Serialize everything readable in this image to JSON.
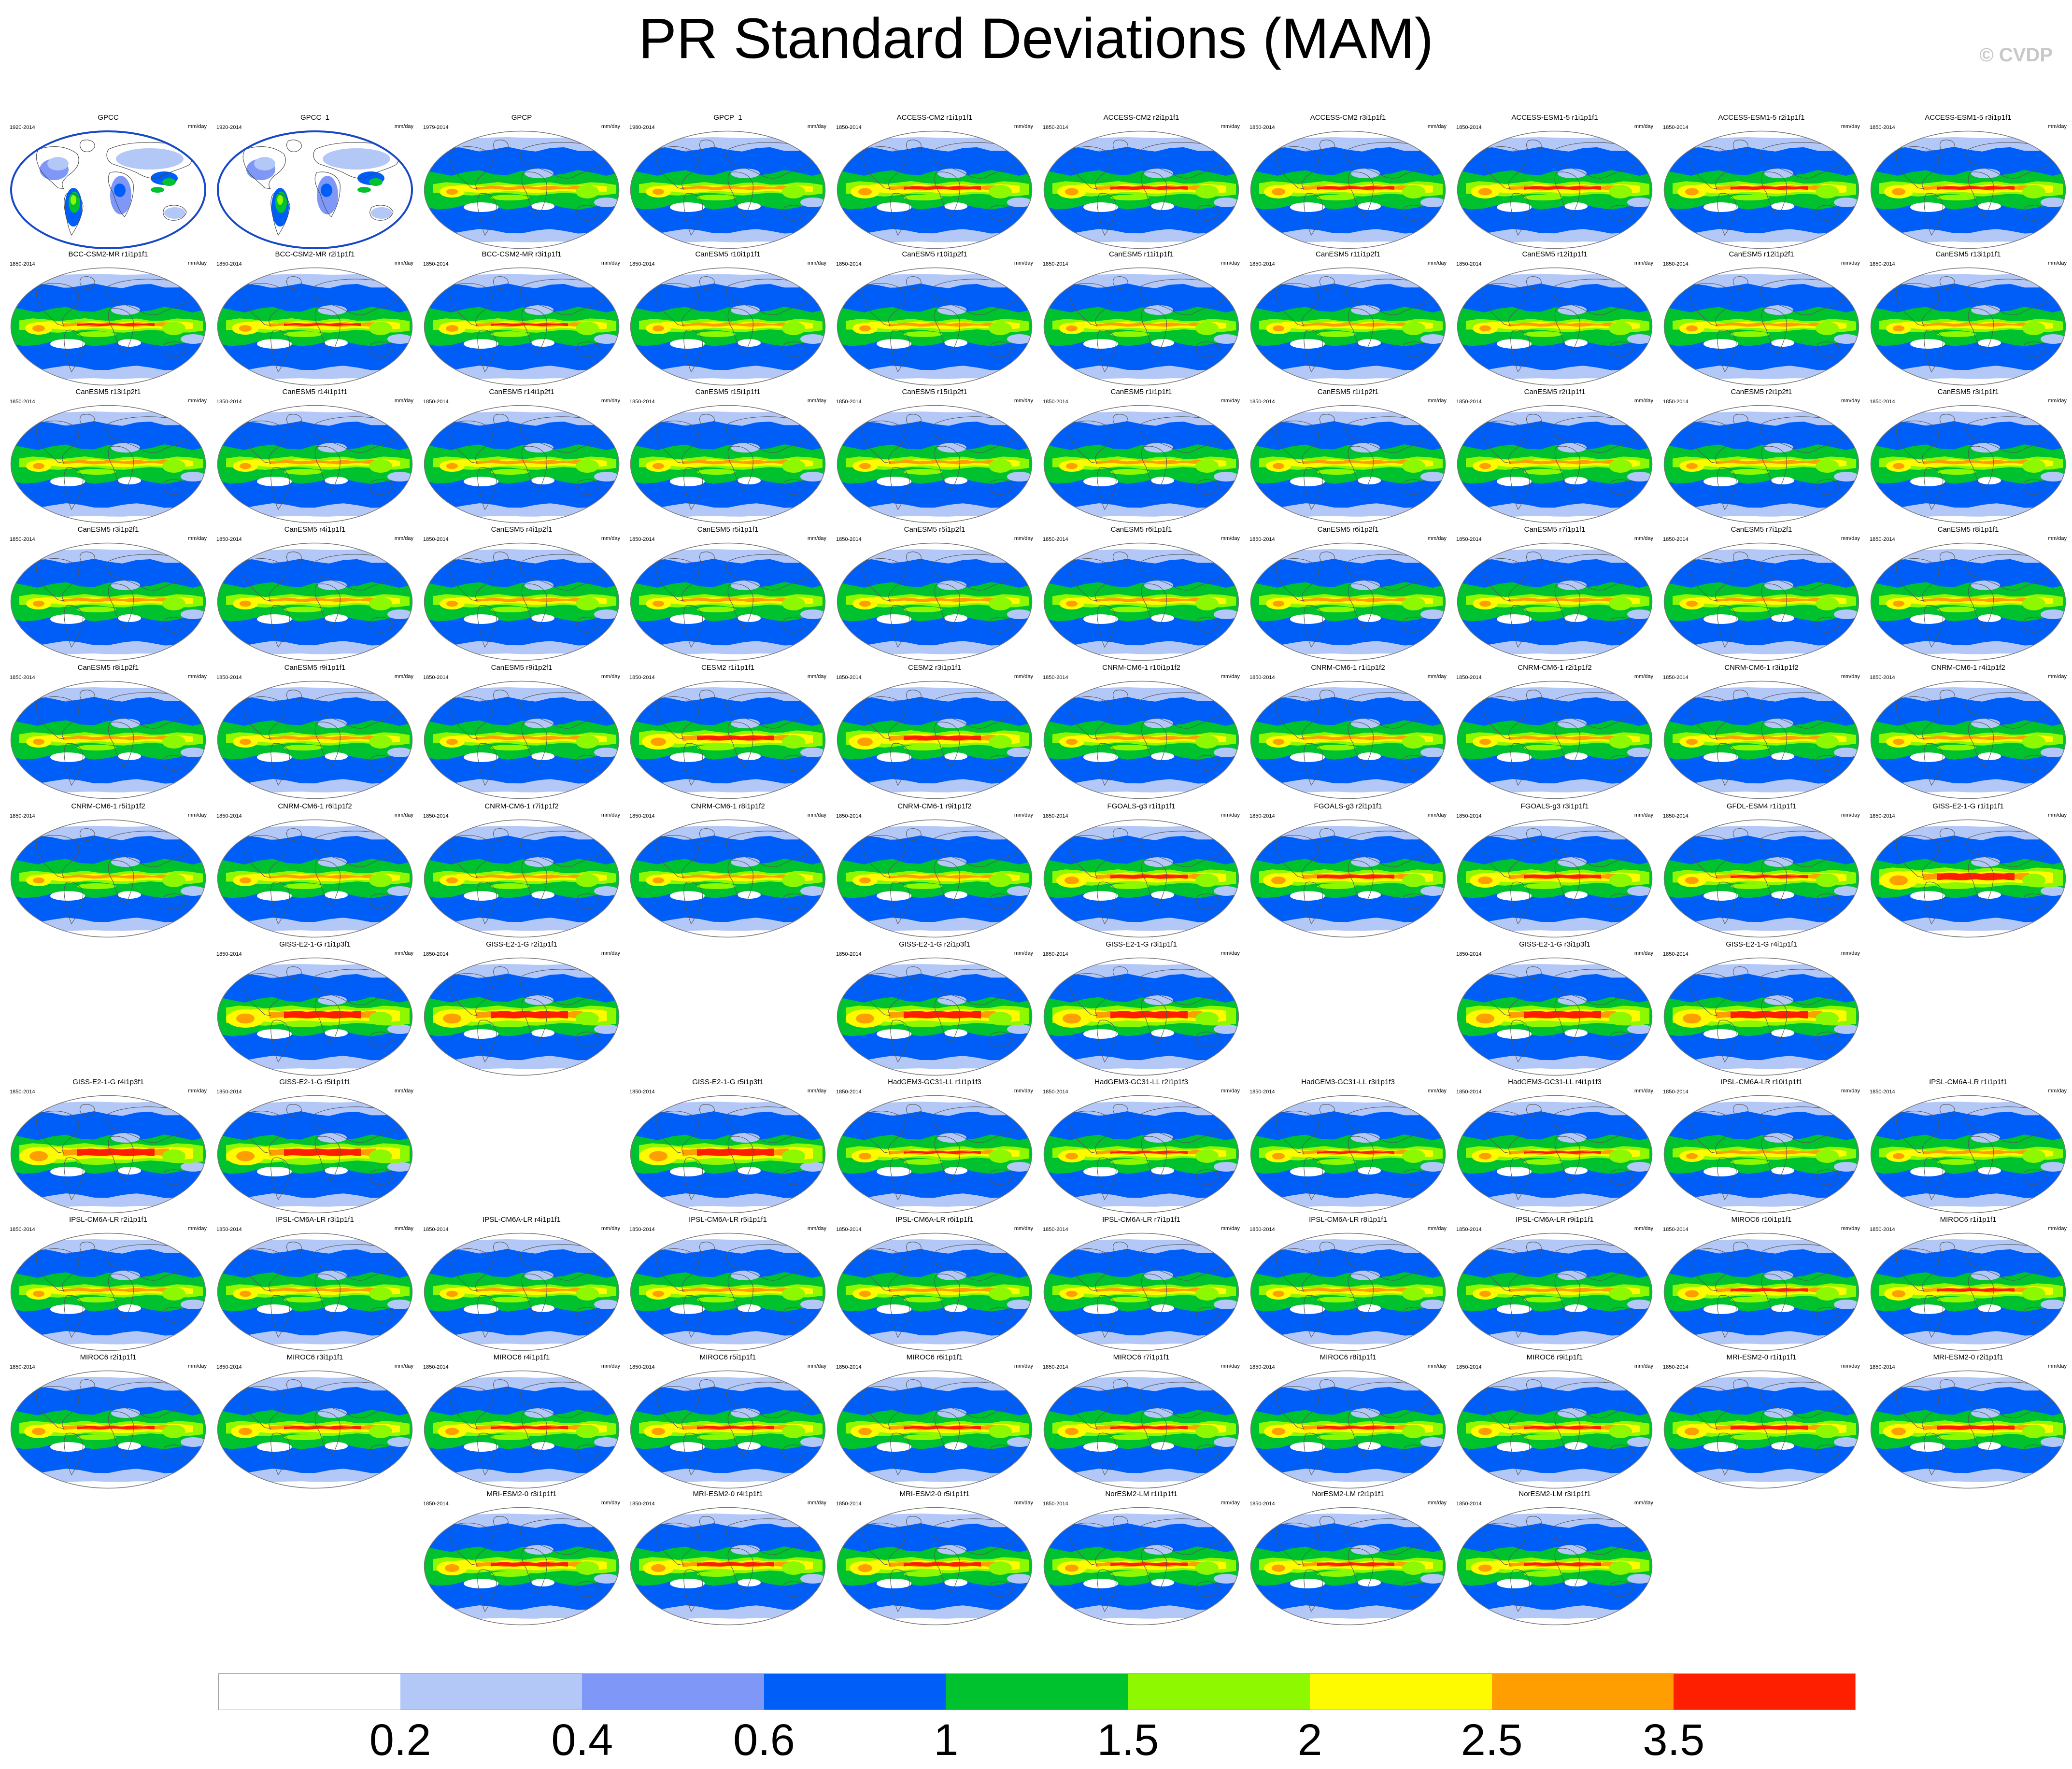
{
  "title": "PR Standard Deviations (MAM)",
  "copyright": "© CVDP",
  "colors": {
    "levels": [
      "#ffffff",
      "#b4c8f8",
      "#7f98f8",
      "#005ef8",
      "#00c22e",
      "#8ef800",
      "#fefa00",
      "#fe9e00",
      "#fe1e00"
    ]
  },
  "colorbar": {
    "labels": [
      "0.2",
      "0.4",
      "0.6",
      "1",
      "1.5",
      "2",
      "2.5",
      "3.5"
    ]
  },
  "panels": [
    {
      "title": "GPCC",
      "years": "1920-2014",
      "units": "mm/day",
      "row": 0,
      "col": 0,
      "style": "obs_land"
    },
    {
      "title": "GPCC_1",
      "years": "1920-2014",
      "units": "mm/day",
      "row": 0,
      "col": 1,
      "style": "obs_land"
    },
    {
      "title": "GPCP",
      "years": "1979-2014",
      "units": "mm/day",
      "row": 0,
      "col": 2,
      "style": "obs"
    },
    {
      "title": "GPCP_1",
      "years": "1980-2014",
      "units": "mm/day",
      "row": 0,
      "col": 3,
      "style": "obs"
    },
    {
      "title": "ACCESS-CM2 r1i1p1f1",
      "years": "1850-2014",
      "units": "mm/day",
      "row": 0,
      "col": 4,
      "style": "access"
    },
    {
      "title": "ACCESS-CM2 r2i1p1f1",
      "years": "1850-2014",
      "units": "mm/day",
      "row": 0,
      "col": 5,
      "style": "access"
    },
    {
      "title": "ACCESS-CM2 r3i1p1f1",
      "years": "1850-2014",
      "units": "mm/day",
      "row": 0,
      "col": 6,
      "style": "access"
    },
    {
      "title": "ACCESS-ESM1-5 r1i1p1f1",
      "years": "1850-2014",
      "units": "mm/day",
      "row": 0,
      "col": 7,
      "style": "access"
    },
    {
      "title": "ACCESS-ESM1-5 r2i1p1f1",
      "years": "1850-2014",
      "units": "mm/day",
      "row": 0,
      "col": 8,
      "style": "access"
    },
    {
      "title": "ACCESS-ESM1-5 r3i1p1f1",
      "years": "1850-2014",
      "units": "mm/day",
      "row": 0,
      "col": 9,
      "style": "access"
    },
    {
      "title": "BCC-CSM2-MR r1i1p1f1",
      "years": "1850-2014",
      "units": "mm/day",
      "row": 1,
      "col": 0,
      "style": "bcc"
    },
    {
      "title": "BCC-CSM2-MR r2i1p1f1",
      "years": "1850-2014",
      "units": "mm/day",
      "row": 1,
      "col": 1,
      "style": "bcc"
    },
    {
      "title": "BCC-CSM2-MR r3i1p1f1",
      "years": "1850-2014",
      "units": "mm/day",
      "row": 1,
      "col": 2,
      "style": "bcc"
    },
    {
      "title": "CanESM5 r10i1p1f1",
      "years": "1850-2014",
      "units": "mm/day",
      "row": 1,
      "col": 3,
      "style": "canesm"
    },
    {
      "title": "CanESM5 r10i1p2f1",
      "years": "1850-2014",
      "units": "mm/day",
      "row": 1,
      "col": 4,
      "style": "canesm"
    },
    {
      "title": "CanESM5 r11i1p1f1",
      "years": "1850-2014",
      "units": "mm/day",
      "row": 1,
      "col": 5,
      "style": "canesm"
    },
    {
      "title": "CanESM5 r11i1p2f1",
      "years": "1850-2014",
      "units": "mm/day",
      "row": 1,
      "col": 6,
      "style": "canesm"
    },
    {
      "title": "CanESM5 r12i1p1f1",
      "years": "1850-2014",
      "units": "mm/day",
      "row": 1,
      "col": 7,
      "style": "canesm"
    },
    {
      "title": "CanESM5 r12i1p2f1",
      "years": "1850-2014",
      "units": "mm/day",
      "row": 1,
      "col": 8,
      "style": "canesm"
    },
    {
      "title": "CanESM5 r13i1p1f1",
      "years": "1850-2014",
      "units": "mm/day",
      "row": 1,
      "col": 9,
      "style": "canesm"
    },
    {
      "title": "CanESM5 r13i1p2f1",
      "years": "1850-2014",
      "units": "mm/day",
      "row": 2,
      "col": 0,
      "style": "canesm"
    },
    {
      "title": "CanESM5 r14i1p1f1",
      "years": "1850-2014",
      "units": "mm/day",
      "row": 2,
      "col": 1,
      "style": "canesm"
    },
    {
      "title": "CanESM5 r14i1p2f1",
      "years": "1850-2014",
      "units": "mm/day",
      "row": 2,
      "col": 2,
      "style": "canesm"
    },
    {
      "title": "CanESM5 r15i1p1f1",
      "years": "1850-2014",
      "units": "mm/day",
      "row": 2,
      "col": 3,
      "style": "canesm"
    },
    {
      "title": "CanESM5 r15i1p2f1",
      "years": "1850-2014",
      "units": "mm/day",
      "row": 2,
      "col": 4,
      "style": "canesm"
    },
    {
      "title": "CanESM5 r1i1p1f1",
      "years": "1850-2014",
      "units": "mm/day",
      "row": 2,
      "col": 5,
      "style": "canesm"
    },
    {
      "title": "CanESM5 r1i1p2f1",
      "years": "1850-2014",
      "units": "mm/day",
      "row": 2,
      "col": 6,
      "style": "canesm"
    },
    {
      "title": "CanESM5 r2i1p1f1",
      "years": "1850-2014",
      "units": "mm/day",
      "row": 2,
      "col": 7,
      "style": "canesm"
    },
    {
      "title": "CanESM5 r2i1p2f1",
      "years": "1850-2014",
      "units": "mm/day",
      "row": 2,
      "col": 8,
      "style": "canesm"
    },
    {
      "title": "CanESM5 r3i1p1f1",
      "years": "1850-2014",
      "units": "mm/day",
      "row": 2,
      "col": 9,
      "style": "canesm"
    },
    {
      "title": "CanESM5 r3i1p2f1",
      "years": "1850-2014",
      "units": "mm/day",
      "row": 3,
      "col": 0,
      "style": "canesm"
    },
    {
      "title": "CanESM5 r4i1p1f1",
      "years": "1850-2014",
      "units": "mm/day",
      "row": 3,
      "col": 1,
      "style": "canesm"
    },
    {
      "title": "CanESM5 r4i1p2f1",
      "years": "1850-2014",
      "units": "mm/day",
      "row": 3,
      "col": 2,
      "style": "canesm"
    },
    {
      "title": "CanESM5 r5i1p1f1",
      "years": "1850-2014",
      "units": "mm/day",
      "row": 3,
      "col": 3,
      "style": "canesm"
    },
    {
      "title": "CanESM5 r5i1p2f1",
      "years": "1850-2014",
      "units": "mm/day",
      "row": 3,
      "col": 4,
      "style": "canesm"
    },
    {
      "title": "CanESM5 r6i1p1f1",
      "years": "1850-2014",
      "units": "mm/day",
      "row": 3,
      "col": 5,
      "style": "canesm"
    },
    {
      "title": "CanESM5 r6i1p2f1",
      "years": "1850-2014",
      "units": "mm/day",
      "row": 3,
      "col": 6,
      "style": "canesm"
    },
    {
      "title": "CanESM5 r7i1p1f1",
      "years": "1850-2014",
      "units": "mm/day",
      "row": 3,
      "col": 7,
      "style": "canesm"
    },
    {
      "title": "CanESM5 r7i1p2f1",
      "years": "1850-2014",
      "units": "mm/day",
      "row": 3,
      "col": 8,
      "style": "canesm"
    },
    {
      "title": "CanESM5 r8i1p1f1",
      "years": "1850-2014",
      "units": "mm/day",
      "row": 3,
      "col": 9,
      "style": "canesm"
    },
    {
      "title": "CanESM5 r8i1p2f1",
      "years": "1850-2014",
      "units": "mm/day",
      "row": 4,
      "col": 0,
      "style": "canesm"
    },
    {
      "title": "CanESM5 r9i1p1f1",
      "years": "1850-2014",
      "units": "mm/day",
      "row": 4,
      "col": 1,
      "style": "canesm"
    },
    {
      "title": "CanESM5 r9i1p2f1",
      "years": "1850-2014",
      "units": "mm/day",
      "row": 4,
      "col": 2,
      "style": "canesm"
    },
    {
      "title": "CESM2 r1i1p1f1",
      "years": "1850-2014",
      "units": "mm/day",
      "row": 4,
      "col": 3,
      "style": "cesm"
    },
    {
      "title": "CESM2 r3i1p1f1",
      "years": "1850-2014",
      "units": "mm/day",
      "row": 4,
      "col": 4,
      "style": "cesm"
    },
    {
      "title": "CNRM-CM6-1 r10i1p1f2",
      "years": "1850-2014",
      "units": "mm/day",
      "row": 4,
      "col": 5,
      "style": "cnrm"
    },
    {
      "title": "CNRM-CM6-1 r1i1p1f2",
      "years": "1850-2014",
      "units": "mm/day",
      "row": 4,
      "col": 6,
      "style": "cnrm"
    },
    {
      "title": "CNRM-CM6-1 r2i1p1f2",
      "years": "1850-2014",
      "units": "mm/day",
      "row": 4,
      "col": 7,
      "style": "cnrm"
    },
    {
      "title": "CNRM-CM6-1 r3i1p1f2",
      "years": "1850-2014",
      "units": "mm/day",
      "row": 4,
      "col": 8,
      "style": "cnrm"
    },
    {
      "title": "CNRM-CM6-1 r4i1p1f2",
      "years": "1850-2014",
      "units": "mm/day",
      "row": 4,
      "col": 9,
      "style": "cnrm"
    },
    {
      "title": "CNRM-CM6-1 r5i1p1f2",
      "years": "1850-2014",
      "units": "mm/day",
      "row": 5,
      "col": 0,
      "style": "cnrm"
    },
    {
      "title": "CNRM-CM6-1 r6i1p1f2",
      "years": "1850-2014",
      "units": "mm/day",
      "row": 5,
      "col": 1,
      "style": "cnrm"
    },
    {
      "title": "CNRM-CM6-1 r7i1p1f2",
      "years": "1850-2014",
      "units": "mm/day",
      "row": 5,
      "col": 2,
      "style": "cnrm"
    },
    {
      "title": "CNRM-CM6-1 r8i1p1f2",
      "years": "1850-2014",
      "units": "mm/day",
      "row": 5,
      "col": 3,
      "style": "cnrm"
    },
    {
      "title": "CNRM-CM6-1 r9i1p1f2",
      "years": "1850-2014",
      "units": "mm/day",
      "row": 5,
      "col": 4,
      "style": "cnrm"
    },
    {
      "title": "FGOALS-g3 r1i1p1f1",
      "years": "1850-2014",
      "units": "mm/day",
      "row": 5,
      "col": 5,
      "style": "fgoals"
    },
    {
      "title": "FGOALS-g3 r2i1p1f1",
      "years": "1850-2014",
      "units": "mm/day",
      "row": 5,
      "col": 6,
      "style": "fgoals"
    },
    {
      "title": "FGOALS-g3 r3i1p1f1",
      "years": "1850-2014",
      "units": "mm/day",
      "row": 5,
      "col": 7,
      "style": "fgoals"
    },
    {
      "title": "GFDL-ESM4 r1i1p1f1",
      "years": "1850-2014",
      "units": "mm/day",
      "row": 5,
      "col": 8,
      "style": "gfdl"
    },
    {
      "title": "GISS-E2-1-G r1i1p1f1",
      "years": "1850-2014",
      "units": "mm/day",
      "row": 5,
      "col": 9,
      "style": "giss"
    },
    {
      "title": "GISS-E2-1-G r1i1p3f1",
      "years": "1850-2014",
      "units": "mm/day",
      "row": 6,
      "col": 1,
      "style": "giss"
    },
    {
      "title": "GISS-E2-1-G r2i1p1f1",
      "years": "1850-2014",
      "units": "mm/day",
      "row": 6,
      "col": 2,
      "style": "giss"
    },
    {
      "title": "GISS-E2-1-G r2i1p3f1",
      "years": "1850-2014",
      "units": "mm/day",
      "row": 6,
      "col": 4,
      "style": "giss"
    },
    {
      "title": "GISS-E2-1-G r3i1p1f1",
      "years": "1850-2014",
      "units": "mm/day",
      "row": 6,
      "col": 5,
      "style": "giss"
    },
    {
      "title": "GISS-E2-1-G r3i1p3f1",
      "years": "1850-2014",
      "units": "mm/day",
      "row": 6,
      "col": 7,
      "style": "giss"
    },
    {
      "title": "GISS-E2-1-G r4i1p1f1",
      "years": "1850-2014",
      "units": "mm/day",
      "row": 6,
      "col": 8,
      "style": "giss"
    },
    {
      "title": "GISS-E2-1-G r4i1p3f1",
      "years": "1850-2014",
      "units": "mm/day",
      "row": 7,
      "col": 0,
      "style": "giss"
    },
    {
      "title": "GISS-E2-1-G r5i1p1f1",
      "years": "1850-2014",
      "units": "mm/day",
      "row": 7,
      "col": 1,
      "style": "giss"
    },
    {
      "title": "GISS-E2-1-G r5i1p3f1",
      "years": "1850-2014",
      "units": "mm/day",
      "row": 7,
      "col": 3,
      "style": "giss"
    },
    {
      "title": "HadGEM3-GC31-LL r1i1p1f3",
      "years": "1850-2014",
      "units": "mm/day",
      "row": 7,
      "col": 4,
      "style": "hadgem"
    },
    {
      "title": "HadGEM3-GC31-LL r2i1p1f3",
      "years": "1850-2014",
      "units": "mm/day",
      "row": 7,
      "col": 5,
      "style": "hadgem"
    },
    {
      "title": "HadGEM3-GC31-LL r3i1p1f3",
      "years": "1850-2014",
      "units": "mm/day",
      "row": 7,
      "col": 6,
      "style": "hadgem"
    },
    {
      "title": "HadGEM3-GC31-LL r4i1p1f3",
      "years": "1850-2014",
      "units": "mm/day",
      "row": 7,
      "col": 7,
      "style": "hadgem"
    },
    {
      "title": "IPSL-CM6A-LR r10i1p1f1",
      "years": "1850-2014",
      "units": "mm/day",
      "row": 7,
      "col": 8,
      "style": "ipsl"
    },
    {
      "title": "IPSL-CM6A-LR r1i1p1f1",
      "years": "1850-2014",
      "units": "mm/day",
      "row": 7,
      "col": 9,
      "style": "ipsl"
    },
    {
      "title": "IPSL-CM6A-LR r2i1p1f1",
      "years": "1850-2014",
      "units": "mm/day",
      "row": 8,
      "col": 0,
      "style": "ipsl"
    },
    {
      "title": "IPSL-CM6A-LR r3i1p1f1",
      "years": "1850-2014",
      "units": "mm/day",
      "row": 8,
      "col": 1,
      "style": "ipsl"
    },
    {
      "title": "IPSL-CM6A-LR r4i1p1f1",
      "years": "1850-2014",
      "units": "mm/day",
      "row": 8,
      "col": 2,
      "style": "ipsl"
    },
    {
      "title": "IPSL-CM6A-LR r5i1p1f1",
      "years": "1850-2014",
      "units": "mm/day",
      "row": 8,
      "col": 3,
      "style": "ipsl"
    },
    {
      "title": "IPSL-CM6A-LR r6i1p1f1",
      "years": "1850-2014",
      "units": "mm/day",
      "row": 8,
      "col": 4,
      "style": "ipsl"
    },
    {
      "title": "IPSL-CM6A-LR r7i1p1f1",
      "years": "1850-2014",
      "units": "mm/day",
      "row": 8,
      "col": 5,
      "style": "ipsl"
    },
    {
      "title": "IPSL-CM6A-LR r8i1p1f1",
      "years": "1850-2014",
      "units": "mm/day",
      "row": 8,
      "col": 6,
      "style": "ipsl"
    },
    {
      "title": "IPSL-CM6A-LR r9i1p1f1",
      "years": "1850-2014",
      "units": "mm/day",
      "row": 8,
      "col": 7,
      "style": "ipsl"
    },
    {
      "title": "MIROC6 r10i1p1f1",
      "years": "1850-2014",
      "units": "mm/day",
      "row": 8,
      "col": 8,
      "style": "miroc"
    },
    {
      "title": "MIROC6 r1i1p1f1",
      "years": "1850-2014",
      "units": "mm/day",
      "row": 8,
      "col": 9,
      "style": "miroc"
    },
    {
      "title": "MIROC6 r2i1p1f1",
      "years": "1850-2014",
      "units": "mm/day",
      "row": 9,
      "col": 0,
      "style": "miroc"
    },
    {
      "title": "MIROC6 r3i1p1f1",
      "years": "1850-2014",
      "units": "mm/day",
      "row": 9,
      "col": 1,
      "style": "miroc"
    },
    {
      "title": "MIROC6 r4i1p1f1",
      "years": "1850-2014",
      "units": "mm/day",
      "row": 9,
      "col": 2,
      "style": "miroc"
    },
    {
      "title": "MIROC6 r5i1p1f1",
      "years": "1850-2014",
      "units": "mm/day",
      "row": 9,
      "col": 3,
      "style": "miroc"
    },
    {
      "title": "MIROC6 r6i1p1f1",
      "years": "1850-2014",
      "units": "mm/day",
      "row": 9,
      "col": 4,
      "style": "miroc"
    },
    {
      "title": "MIROC6 r7i1p1f1",
      "years": "1850-2014",
      "units": "mm/day",
      "row": 9,
      "col": 5,
      "style": "miroc"
    },
    {
      "title": "MIROC6 r8i1p1f1",
      "years": "1850-2014",
      "units": "mm/day",
      "row": 9,
      "col": 6,
      "style": "miroc"
    },
    {
      "title": "MIROC6 r9i1p1f1",
      "years": "1850-2014",
      "units": "mm/day",
      "row": 9,
      "col": 7,
      "style": "miroc"
    },
    {
      "title": "MRI-ESM2-0 r1i1p1f1",
      "years": "1850-2014",
      "units": "mm/day",
      "row": 9,
      "col": 8,
      "style": "mri"
    },
    {
      "title": "MRI-ESM2-0 r2i1p1f1",
      "years": "1850-2014",
      "units": "mm/day",
      "row": 9,
      "col": 9,
      "style": "mri"
    },
    {
      "title": "MRI-ESM2-0 r3i1p1f1",
      "years": "1850-2014",
      "units": "mm/day",
      "row": 10,
      "col": 2,
      "style": "mri"
    },
    {
      "title": "MRI-ESM2-0 r4i1p1f1",
      "years": "1850-2014",
      "units": "mm/day",
      "row": 10,
      "col": 3,
      "style": "mri"
    },
    {
      "title": "MRI-ESM2-0 r5i1p1f1",
      "years": "1850-2014",
      "units": "mm/day",
      "row": 10,
      "col": 4,
      "style": "mri"
    },
    {
      "title": "NorESM2-LM r1i1p1f1",
      "years": "1850-2014",
      "units": "mm/day",
      "row": 10,
      "col": 5,
      "style": "noresm"
    },
    {
      "title": "NorESM2-LM r2i1p1f1",
      "years": "1850-2014",
      "units": "mm/day",
      "row": 10,
      "col": 6,
      "style": "noresm"
    },
    {
      "title": "NorESM2-LM r3i1p1f1",
      "years": "1850-2014",
      "units": "mm/day",
      "row": 10,
      "col": 7,
      "style": "noresm"
    }
  ]
}
